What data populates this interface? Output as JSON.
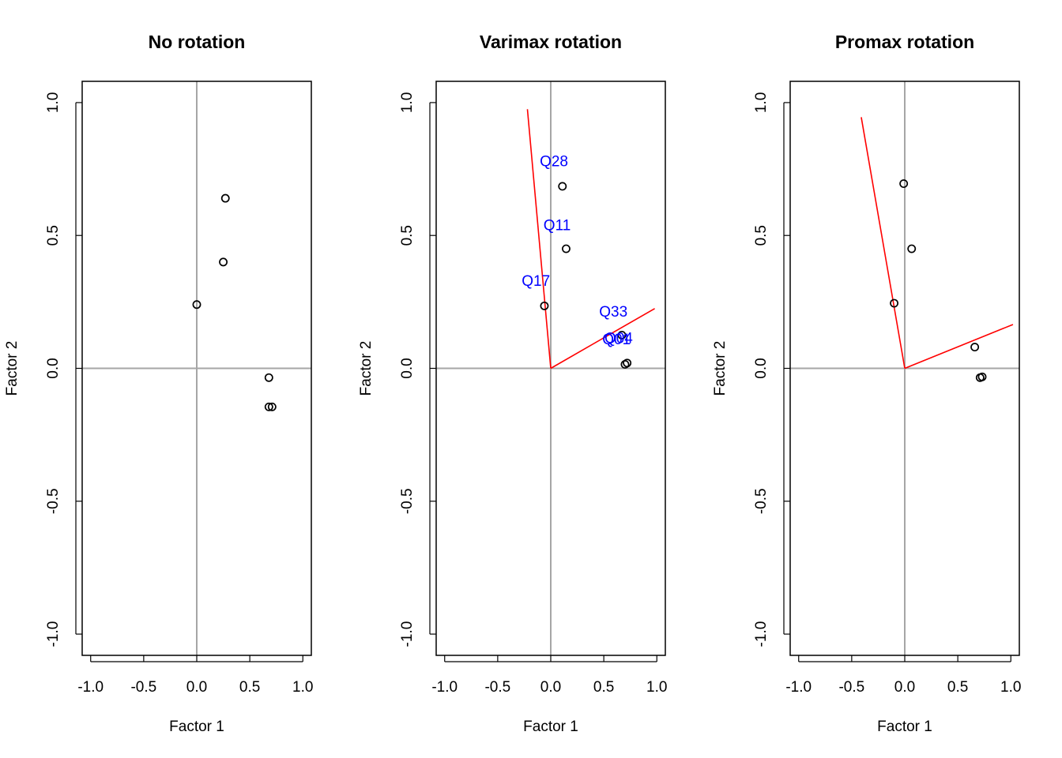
{
  "chart_data": [
    {
      "type": "scatter",
      "title": "No rotation",
      "xlabel": "Factor 1",
      "ylabel": "Factor 2",
      "xlim": [
        -1.0,
        1.0
      ],
      "ylim": [
        -1.0,
        1.0
      ],
      "xticks": [
        "-1.0",
        "-0.5",
        "0.0",
        "0.5",
        "1.0"
      ],
      "yticks": [
        "-1.0",
        "-0.5",
        "0.0",
        "0.5",
        "1.0"
      ],
      "reference_lines": {
        "x": 0,
        "y": 0,
        "color": "#a6a6a6"
      },
      "points": [
        {
          "x": 0.0,
          "y": 0.24
        },
        {
          "x": 0.25,
          "y": 0.4
        },
        {
          "x": 0.27,
          "y": 0.64
        },
        {
          "x": 0.68,
          "y": -0.035
        },
        {
          "x": 0.68,
          "y": -0.145
        },
        {
          "x": 0.71,
          "y": -0.145
        }
      ],
      "axes_lines": []
    },
    {
      "type": "scatter",
      "title": "Varimax rotation",
      "xlabel": "Factor 1",
      "ylabel": "Factor 2",
      "xlim": [
        -1.0,
        1.0
      ],
      "ylim": [
        -1.0,
        1.0
      ],
      "xticks": [
        "-1.0",
        "-0.5",
        "0.0",
        "0.5",
        "1.0"
      ],
      "yticks": [
        "-1.0",
        "-0.5",
        "0.0",
        "0.5",
        "1.0"
      ],
      "reference_lines": {
        "x": 0,
        "y": 0,
        "color": "#a6a6a6"
      },
      "points": [
        {
          "x": -0.06,
          "y": 0.235
        },
        {
          "x": 0.145,
          "y": 0.45
        },
        {
          "x": 0.11,
          "y": 0.685
        },
        {
          "x": 0.67,
          "y": 0.125
        },
        {
          "x": 0.7,
          "y": 0.015
        },
        {
          "x": 0.72,
          "y": 0.02
        }
      ],
      "labels": [
        {
          "text": "Q28",
          "x": 0.03,
          "y": 0.76,
          "color": "#0000ff"
        },
        {
          "text": "Q11",
          "x": 0.06,
          "y": 0.52,
          "color": "#0000ff"
        },
        {
          "text": "Q17",
          "x": -0.14,
          "y": 0.31,
          "color": "#0000ff"
        },
        {
          "text": "Q33",
          "x": 0.59,
          "y": 0.195,
          "color": "#0000ff"
        },
        {
          "text": "Q01",
          "x": 0.62,
          "y": 0.09,
          "color": "#0000ff"
        },
        {
          "text": "Q04",
          "x": 0.64,
          "y": 0.095,
          "color": "#0000ff"
        }
      ],
      "axes_lines": [
        {
          "x2": -0.22,
          "y2": 0.975,
          "color": "#ff0000"
        },
        {
          "x2": 0.98,
          "y2": 0.225,
          "color": "#ff0000"
        }
      ]
    },
    {
      "type": "scatter",
      "title": "Promax rotation",
      "xlabel": "Factor 1",
      "ylabel": "Factor 2",
      "xlim": [
        -1.0,
        1.0
      ],
      "ylim": [
        -1.0,
        1.0
      ],
      "xticks": [
        "-1.0",
        "-0.5",
        "0.0",
        "0.5",
        "1.0"
      ],
      "yticks": [
        "-1.0",
        "-0.5",
        "0.0",
        "0.5",
        "1.0"
      ],
      "reference_lines": {
        "x": 0,
        "y": 0,
        "color": "#a6a6a6"
      },
      "points": [
        {
          "x": -0.1,
          "y": 0.245
        },
        {
          "x": 0.065,
          "y": 0.45
        },
        {
          "x": -0.01,
          "y": 0.695
        },
        {
          "x": 0.66,
          "y": 0.08
        },
        {
          "x": 0.71,
          "y": -0.035
        },
        {
          "x": 0.73,
          "y": -0.032
        }
      ],
      "axes_lines": [
        {
          "x2": -0.41,
          "y2": 0.945,
          "color": "#ff0000"
        },
        {
          "x2": 1.02,
          "y2": 0.165,
          "color": "#ff0000"
        }
      ]
    }
  ]
}
